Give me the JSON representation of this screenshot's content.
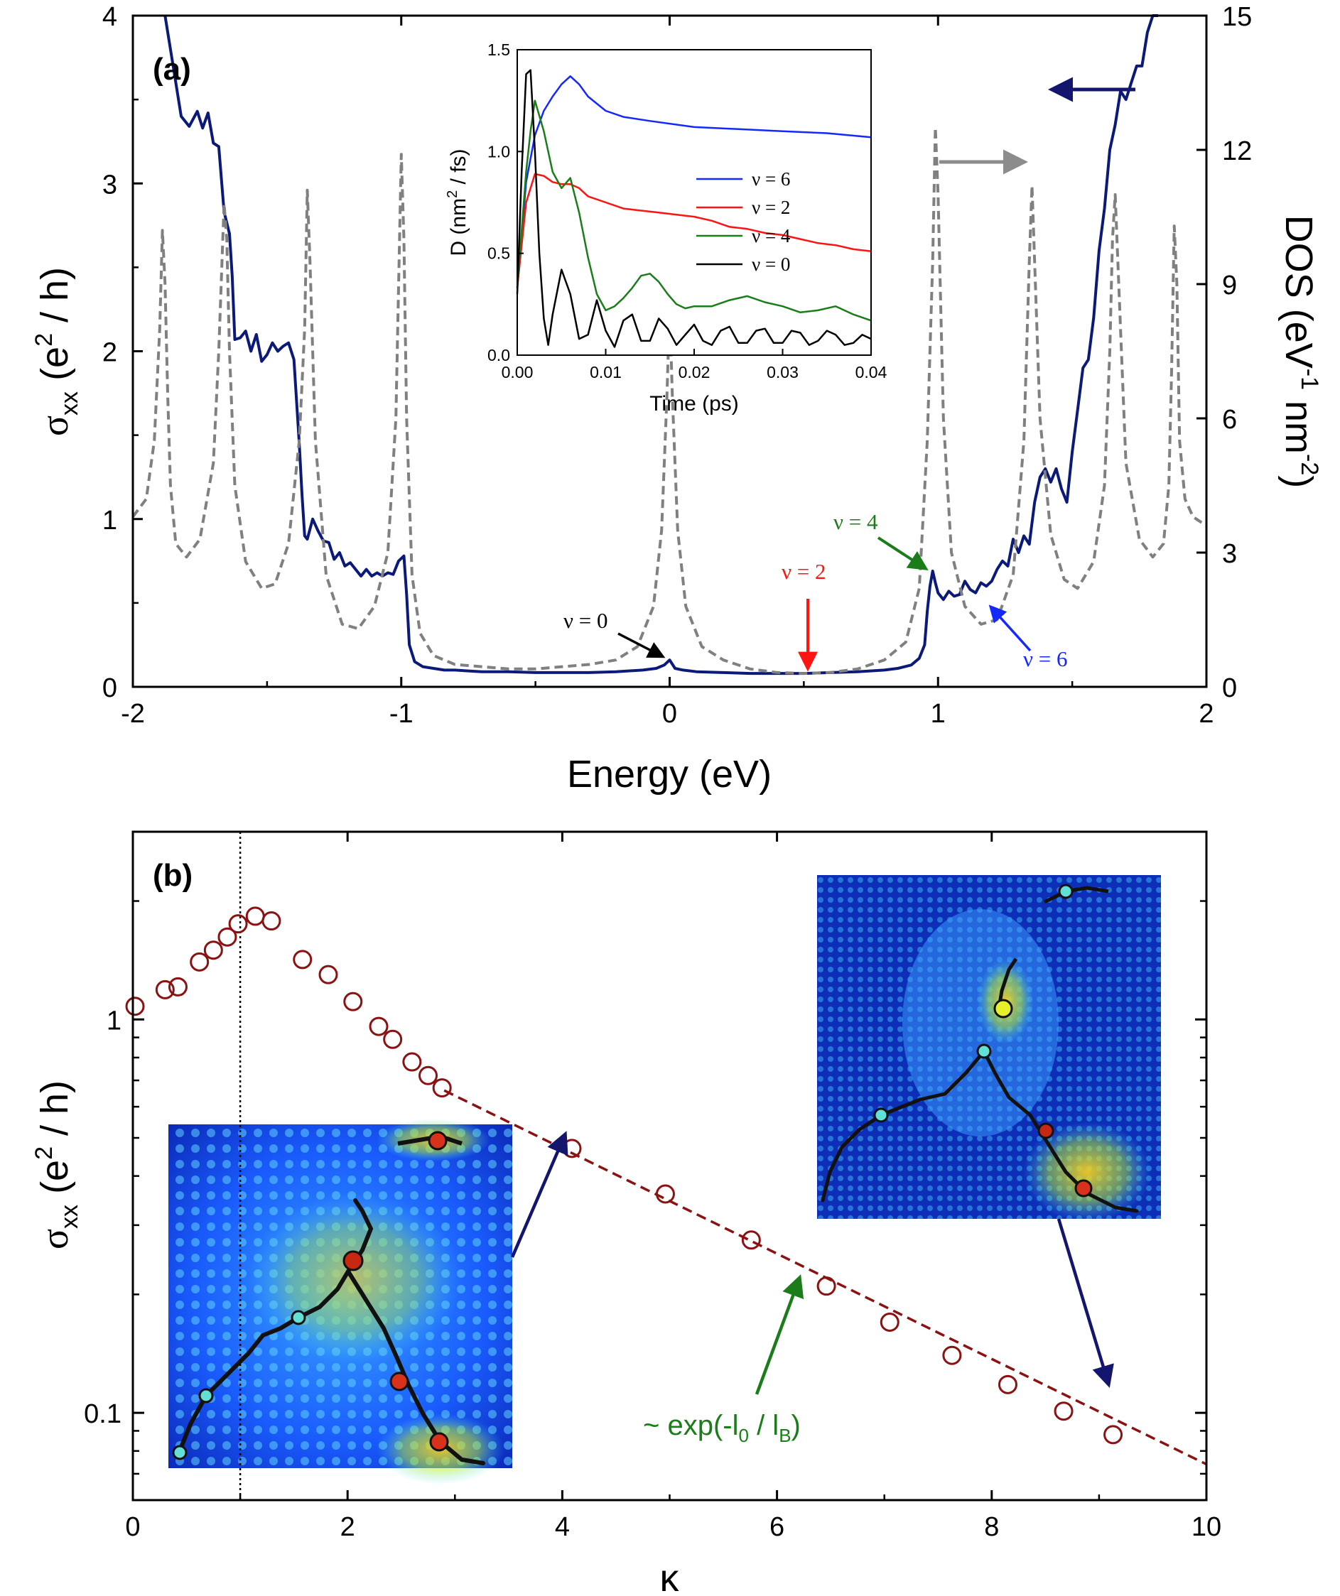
{
  "figure": {
    "colors": {
      "sigma": "#0b1a78",
      "dos": "#808080",
      "nu6": "#1428ff",
      "nu2": "#ff1414",
      "nu4": "#1a7d1a",
      "nu0": "#000000",
      "markers": "#8b1212",
      "fit": "#8b1212",
      "arrow_navy": "#14166e",
      "arrow_gray": "#8c8c8c"
    }
  },
  "chart_data": [
    {
      "id": "a",
      "type": "line",
      "panel_label": "(a)",
      "xlabel": "Energy (eV)",
      "ylabel_left": "σxx (e2 / h)",
      "ylabel_right": "DOS (eV-1 nm-2)",
      "xlim": [
        -2,
        2
      ],
      "ylim_left": [
        0,
        4
      ],
      "ylim_right": [
        0,
        15
      ],
      "xticks": [
        "-2",
        "-1",
        "0",
        "1",
        "2"
      ],
      "yticks_left": [
        "0",
        "1",
        "2",
        "3",
        "4"
      ],
      "yticks_right": [
        "0",
        "3",
        "6",
        "9",
        "12",
        "15"
      ],
      "series": [
        {
          "name": "sigma_xx",
          "axis": "left",
          "style": "solid",
          "x": [
            -1.88,
            -1.85,
            -1.82,
            -1.79,
            -1.76,
            -1.74,
            -1.72,
            -1.7,
            -1.68,
            -1.66,
            -1.64,
            -1.63,
            -1.62,
            -1.6,
            -1.58,
            -1.56,
            -1.54,
            -1.52,
            -1.5,
            -1.48,
            -1.46,
            -1.44,
            -1.42,
            -1.4,
            -1.38,
            -1.37,
            -1.36,
            -1.35,
            -1.33,
            -1.31,
            -1.29,
            -1.27,
            -1.25,
            -1.23,
            -1.21,
            -1.19,
            -1.17,
            -1.15,
            -1.13,
            -1.11,
            -1.09,
            -1.07,
            -1.05,
            -1.03,
            -1.01,
            -0.99,
            -0.98,
            -0.97,
            -0.95,
            -0.92,
            -0.88,
            -0.84,
            -0.8,
            -0.75,
            -0.7,
            -0.6,
            -0.5,
            -0.4,
            -0.3,
            -0.2,
            -0.1,
            -0.05,
            -0.02,
            0.0,
            0.02,
            0.05,
            0.1,
            0.2,
            0.3,
            0.4,
            0.5,
            0.6,
            0.7,
            0.8,
            0.85,
            0.9,
            0.93,
            0.95,
            0.96,
            0.97,
            0.98,
            0.99,
            1.0,
            1.02,
            1.04,
            1.06,
            1.08,
            1.1,
            1.12,
            1.14,
            1.16,
            1.18,
            1.2,
            1.22,
            1.24,
            1.26,
            1.28,
            1.3,
            1.32,
            1.34,
            1.36,
            1.38,
            1.4,
            1.42,
            1.44,
            1.46,
            1.48,
            1.5,
            1.52,
            1.54,
            1.56,
            1.58,
            1.6,
            1.62,
            1.64,
            1.66,
            1.68,
            1.7,
            1.72,
            1.74,
            1.76,
            1.78,
            1.8,
            1.82
          ],
          "y": [
            4.0,
            3.7,
            3.4,
            3.34,
            3.43,
            3.33,
            3.42,
            3.24,
            3.22,
            2.83,
            2.7,
            2.45,
            2.07,
            2.08,
            2.12,
            2.0,
            2.1,
            1.94,
            1.98,
            2.05,
            2.0,
            2.03,
            2.05,
            1.95,
            1.45,
            1.15,
            0.9,
            0.88,
            1.0,
            0.93,
            0.87,
            0.86,
            0.76,
            0.8,
            0.72,
            0.74,
            0.7,
            0.66,
            0.7,
            0.66,
            0.68,
            0.66,
            0.68,
            0.67,
            0.75,
            0.78,
            0.55,
            0.25,
            0.15,
            0.12,
            0.11,
            0.1,
            0.1,
            0.095,
            0.09,
            0.09,
            0.085,
            0.085,
            0.085,
            0.09,
            0.1,
            0.11,
            0.13,
            0.16,
            0.11,
            0.1,
            0.09,
            0.085,
            0.08,
            0.08,
            0.08,
            0.085,
            0.09,
            0.1,
            0.11,
            0.13,
            0.17,
            0.25,
            0.45,
            0.6,
            0.69,
            0.62,
            0.56,
            0.52,
            0.57,
            0.54,
            0.55,
            0.63,
            0.58,
            0.56,
            0.62,
            0.6,
            0.63,
            0.7,
            0.75,
            0.72,
            0.88,
            0.8,
            0.9,
            0.85,
            1.1,
            1.25,
            1.3,
            1.22,
            1.3,
            1.18,
            1.1,
            1.4,
            1.65,
            1.9,
            1.95,
            2.2,
            2.6,
            2.85,
            3.2,
            3.35,
            3.55,
            3.5,
            3.6,
            3.7,
            3.7,
            3.9,
            4.0,
            4.0
          ]
        },
        {
          "name": "DOS",
          "axis": "right",
          "style": "dashed",
          "x": [
            -2.0,
            -1.95,
            -1.92,
            -1.9,
            -1.89,
            -1.88,
            -1.87,
            -1.86,
            -1.84,
            -1.8,
            -1.75,
            -1.7,
            -1.68,
            -1.66,
            -1.65,
            -1.64,
            -1.62,
            -1.58,
            -1.52,
            -1.47,
            -1.42,
            -1.38,
            -1.36,
            -1.35,
            -1.34,
            -1.32,
            -1.28,
            -1.22,
            -1.16,
            -1.1,
            -1.05,
            -1.02,
            -1.0,
            -0.99,
            -0.98,
            -0.96,
            -0.93,
            -0.88,
            -0.8,
            -0.7,
            -0.6,
            -0.5,
            -0.4,
            -0.3,
            -0.2,
            -0.12,
            -0.06,
            -0.03,
            -0.01,
            0.0,
            0.01,
            0.03,
            0.06,
            0.12,
            0.2,
            0.3,
            0.4,
            0.5,
            0.6,
            0.7,
            0.8,
            0.88,
            0.93,
            0.96,
            0.98,
            0.99,
            1.0,
            1.02,
            1.05,
            1.1,
            1.16,
            1.22,
            1.28,
            1.32,
            1.34,
            1.35,
            1.36,
            1.38,
            1.42,
            1.47,
            1.52,
            1.58,
            1.62,
            1.64,
            1.65,
            1.66,
            1.68,
            1.7,
            1.75,
            1.8,
            1.84,
            1.86,
            1.87,
            1.88,
            1.89,
            1.9,
            1.92,
            1.95,
            2.0
          ],
          "y": [
            3.8,
            4.2,
            5.5,
            8.0,
            10.2,
            9.0,
            6.5,
            4.5,
            3.2,
            2.9,
            3.3,
            5.0,
            7.5,
            10.8,
            10.0,
            7.5,
            4.5,
            2.8,
            2.2,
            2.3,
            3.2,
            5.5,
            8.0,
            11.1,
            9.5,
            5.5,
            2.5,
            1.4,
            1.3,
            1.8,
            3.0,
            6.0,
            11.9,
            10.0,
            6.0,
            2.5,
            1.2,
            0.7,
            0.5,
            0.45,
            0.4,
            0.4,
            0.45,
            0.5,
            0.6,
            0.9,
            1.8,
            3.5,
            6.5,
            8.5,
            6.5,
            3.5,
            1.8,
            0.9,
            0.6,
            0.4,
            0.32,
            0.3,
            0.32,
            0.4,
            0.6,
            1.0,
            2.2,
            5.5,
            9.5,
            12.5,
            11.0,
            6.0,
            3.0,
            1.8,
            1.4,
            1.5,
            2.5,
            5.5,
            9.5,
            11.2,
            9.5,
            6.0,
            3.4,
            2.4,
            2.2,
            2.8,
            4.5,
            7.5,
            10.0,
            11.0,
            8.0,
            5.0,
            3.3,
            2.9,
            3.2,
            4.5,
            7.0,
            10.3,
            9.0,
            5.5,
            4.2,
            3.8,
            3.6
          ]
        }
      ],
      "annotations": [
        "ν = 0",
        "ν = 2",
        "ν = 4",
        "ν = 6"
      ]
    },
    {
      "id": "a_inset",
      "type": "line",
      "xlabel": "Time (ps)",
      "ylabel": "D (nm2 / fs)",
      "xlim": [
        0,
        0.04
      ],
      "ylim": [
        0,
        1.5
      ],
      "xticks": [
        "0.00",
        "0.01",
        "0.02",
        "0.03",
        "0.04"
      ],
      "yticks": [
        "0.0",
        "0.5",
        "1.0",
        "1.5"
      ],
      "legend_position": "right",
      "series": [
        {
          "name": "ν = 6",
          "x": [
            0,
            0.001,
            0.002,
            0.003,
            0.004,
            0.005,
            0.006,
            0.007,
            0.008,
            0.01,
            0.012,
            0.015,
            0.02,
            0.025,
            0.03,
            0.035,
            0.04
          ],
          "y": [
            0.33,
            0.85,
            1.08,
            1.2,
            1.27,
            1.33,
            1.37,
            1.33,
            1.27,
            1.2,
            1.17,
            1.15,
            1.12,
            1.11,
            1.1,
            1.09,
            1.07
          ]
        },
        {
          "name": "ν = 2",
          "x": [
            0,
            0.001,
            0.002,
            0.003,
            0.004,
            0.005,
            0.006,
            0.007,
            0.008,
            0.01,
            0.012,
            0.014,
            0.016,
            0.018,
            0.02,
            0.022,
            0.024,
            0.026,
            0.028,
            0.03,
            0.032,
            0.034,
            0.036,
            0.038,
            0.04
          ],
          "y": [
            0.33,
            0.75,
            0.89,
            0.88,
            0.85,
            0.84,
            0.84,
            0.82,
            0.78,
            0.75,
            0.72,
            0.71,
            0.7,
            0.69,
            0.68,
            0.66,
            0.63,
            0.62,
            0.6,
            0.59,
            0.57,
            0.55,
            0.54,
            0.52,
            0.51
          ]
        },
        {
          "name": "ν = 4",
          "x": [
            0,
            0.001,
            0.0015,
            0.002,
            0.003,
            0.004,
            0.005,
            0.006,
            0.007,
            0.008,
            0.009,
            0.01,
            0.011,
            0.012,
            0.013,
            0.014,
            0.015,
            0.016,
            0.017,
            0.018,
            0.019,
            0.02,
            0.022,
            0.024,
            0.026,
            0.028,
            0.03,
            0.032,
            0.034,
            0.036,
            0.038,
            0.04
          ],
          "y": [
            0.33,
            0.9,
            1.1,
            1.25,
            1.1,
            0.9,
            0.82,
            0.87,
            0.7,
            0.48,
            0.3,
            0.22,
            0.24,
            0.28,
            0.33,
            0.39,
            0.4,
            0.36,
            0.3,
            0.25,
            0.23,
            0.24,
            0.24,
            0.27,
            0.29,
            0.26,
            0.24,
            0.21,
            0.22,
            0.24,
            0.2,
            0.17
          ]
        },
        {
          "name": "ν = 0",
          "x": [
            0,
            0.0005,
            0.001,
            0.0015,
            0.002,
            0.0025,
            0.003,
            0.0035,
            0.004,
            0.005,
            0.006,
            0.007,
            0.008,
            0.009,
            0.01,
            0.011,
            0.012,
            0.013,
            0.014,
            0.015,
            0.016,
            0.017,
            0.018,
            0.019,
            0.02,
            0.021,
            0.022,
            0.023,
            0.024,
            0.025,
            0.026,
            0.027,
            0.028,
            0.029,
            0.03,
            0.031,
            0.032,
            0.033,
            0.034,
            0.035,
            0.036,
            0.037,
            0.038,
            0.039,
            0.04
          ],
          "y": [
            0.3,
            0.9,
            1.38,
            1.4,
            1.0,
            0.5,
            0.18,
            0.05,
            0.2,
            0.42,
            0.3,
            0.08,
            0.1,
            0.27,
            0.12,
            0.04,
            0.17,
            0.2,
            0.07,
            0.07,
            0.18,
            0.13,
            0.05,
            0.1,
            0.15,
            0.07,
            0.05,
            0.12,
            0.14,
            0.06,
            0.06,
            0.12,
            0.13,
            0.06,
            0.06,
            0.12,
            0.11,
            0.05,
            0.07,
            0.12,
            0.1,
            0.05,
            0.06,
            0.1,
            0.08
          ]
        }
      ]
    },
    {
      "id": "b",
      "type": "scatter",
      "panel_label": "(b)",
      "xlabel": "κ",
      "ylabel": "σxx (e2 / h)",
      "yscale": "log",
      "xlim": [
        0,
        10
      ],
      "ylim": [
        0.06,
        3.0
      ],
      "xticks": [
        "0",
        "2",
        "4",
        "6",
        "8",
        "10"
      ],
      "yticks": [
        "0.1",
        "1"
      ],
      "vline_x": 1,
      "series": [
        {
          "name": "data",
          "x": [
            0.02,
            0.3,
            0.42,
            0.62,
            0.75,
            0.88,
            0.98,
            1.14,
            1.29,
            1.58,
            1.82,
            2.05,
            2.29,
            2.42,
            2.6,
            2.75,
            2.88,
            4.09,
            4.96,
            5.76,
            6.46,
            7.05,
            7.63,
            8.15,
            8.67,
            9.13
          ],
          "y": [
            1.08,
            1.19,
            1.21,
            1.4,
            1.5,
            1.62,
            1.75,
            1.83,
            1.78,
            1.42,
            1.3,
            1.11,
            0.96,
            0.89,
            0.78,
            0.72,
            0.67,
            0.47,
            0.36,
            0.275,
            0.21,
            0.17,
            0.14,
            0.118,
            0.101,
            0.088
          ]
        },
        {
          "name": "fit ~ exp(-l0 / lB)",
          "style": "dashed",
          "x": [
            2.9,
            10.0
          ],
          "y": [
            0.66,
            0.074
          ]
        }
      ],
      "annotation": "~ exp(-l0 / lB)"
    }
  ],
  "text": {
    "panel_a": "(a)",
    "panel_b": "(b)",
    "energy_axis": "Energy (eV)",
    "sigma_symbol": "σ",
    "sigma_sub": "xx",
    "sigma_rest_1": " (e",
    "sigma_sup": "2",
    "sigma_rest_2": " / h)",
    "dos_main": "DOS (eV",
    "dos_sup1": "-1",
    "dos_mid": " nm",
    "dos_sup2": "-2",
    "dos_end": ")",
    "inset_time": "Time (ps)",
    "inset_d_main": "D (nm",
    "inset_d_sup": "2",
    "inset_d_end": " / fs)",
    "kappa": "κ",
    "fit_pre": "~ exp(-l",
    "fit_sub0": "0",
    "fit_mid": " / l",
    "fit_subB": "B",
    "fit_end": ")",
    "nu0": "ν = 0",
    "nu2": "ν = 2",
    "nu4": "ν = 4",
    "nu6": "ν = 6"
  }
}
